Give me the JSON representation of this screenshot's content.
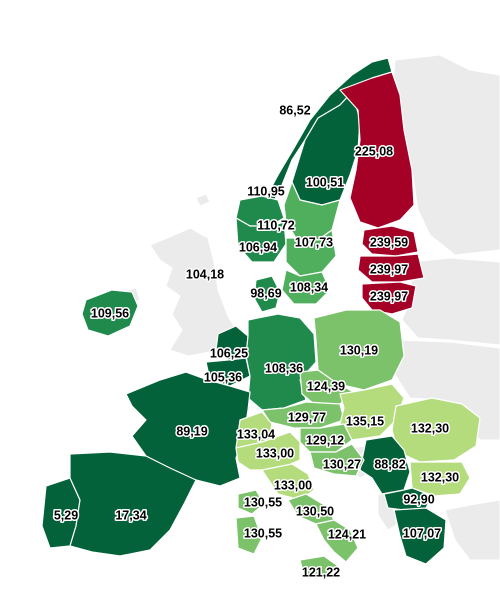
{
  "colors": {
    "sea": "#ffffff",
    "non_data_land": "#ebebeb",
    "dark_green": "#03623a",
    "mid_green": "#1f8a4c",
    "green": "#4faf5c",
    "light_green": "#7cc26b",
    "lime": "#b4dc7d",
    "red": "#a50026"
  },
  "regions": [
    {
      "id": "norway-north",
      "value": "86,52",
      "color": "#03623a"
    },
    {
      "id": "sweden-north",
      "value": "100,51",
      "color": "#03623a"
    },
    {
      "id": "finland",
      "value": "225,08",
      "color": "#a50026"
    },
    {
      "id": "norway-south",
      "value": "110,95",
      "color": "#1f8a4c"
    },
    {
      "id": "sweden-mid",
      "value": "110,72",
      "color": "#4faf5c"
    },
    {
      "id": "norway-southwest",
      "value": "106,94",
      "color": "#1f8a4c"
    },
    {
      "id": "sweden-south",
      "value": "107,73",
      "color": "#4faf5c"
    },
    {
      "id": "estonia",
      "value": "239,59",
      "color": "#a50026"
    },
    {
      "id": "latvia",
      "value": "239,97",
      "color": "#a50026"
    },
    {
      "id": "lithuania",
      "value": "239,97",
      "color": "#a50026"
    },
    {
      "id": "united-kingdom",
      "value": "104,18",
      "color": "#ebebeb"
    },
    {
      "id": "denmark",
      "value": "98,69",
      "color": "#1f8a4c"
    },
    {
      "id": "sweden-southmost",
      "value": "108,34",
      "color": "#4faf5c"
    },
    {
      "id": "ireland",
      "value": "109,56",
      "color": "#1f8a4c"
    },
    {
      "id": "netherlands",
      "value": "106,25",
      "color": "#03623a"
    },
    {
      "id": "belgium",
      "value": "105,36",
      "color": "#03623a"
    },
    {
      "id": "germany",
      "value": "108,36",
      "color": "#1f8a4c"
    },
    {
      "id": "poland",
      "value": "130,19",
      "color": "#7cc26b"
    },
    {
      "id": "czechia",
      "value": "124,39",
      "color": "#7cc26b"
    },
    {
      "id": "france",
      "value": "89,19",
      "color": "#03623a"
    },
    {
      "id": "austria",
      "value": "129,77",
      "color": "#7cc26b"
    },
    {
      "id": "slovakia-hungary",
      "value": "135,15",
      "color": "#b4dc7d"
    },
    {
      "id": "romania",
      "value": "132,30",
      "color": "#b4dc7d"
    },
    {
      "id": "switzerland-north-italy",
      "value": "133,04",
      "color": "#b4dc7d"
    },
    {
      "id": "slovenia-croatia",
      "value": "129,12",
      "color": "#7cc26b"
    },
    {
      "id": "italy-north",
      "value": "133,00",
      "color": "#b4dc7d"
    },
    {
      "id": "croatia",
      "value": "130,27",
      "color": "#7cc26b"
    },
    {
      "id": "serbia",
      "value": "88,82",
      "color": "#03623a"
    },
    {
      "id": "bulgaria",
      "value": "132,30",
      "color": "#b4dc7d"
    },
    {
      "id": "italy-central",
      "value": "133,00",
      "color": "#b4dc7d"
    },
    {
      "id": "sardinia-north",
      "value": "130,55",
      "color": "#7cc26b"
    },
    {
      "id": "italy-south-central",
      "value": "130,50",
      "color": "#7cc26b"
    },
    {
      "id": "greece-north",
      "value": "92,90",
      "color": "#03623a"
    },
    {
      "id": "portugal",
      "value": "5,29",
      "color": "#03623a"
    },
    {
      "id": "spain",
      "value": "17,34",
      "color": "#03623a"
    },
    {
      "id": "sardinia",
      "value": "130,55",
      "color": "#7cc26b"
    },
    {
      "id": "italy-south",
      "value": "124,21",
      "color": "#7cc26b"
    },
    {
      "id": "greece",
      "value": "107,07",
      "color": "#03623a"
    },
    {
      "id": "sicily",
      "value": "121,22",
      "color": "#7cc26b"
    }
  ]
}
